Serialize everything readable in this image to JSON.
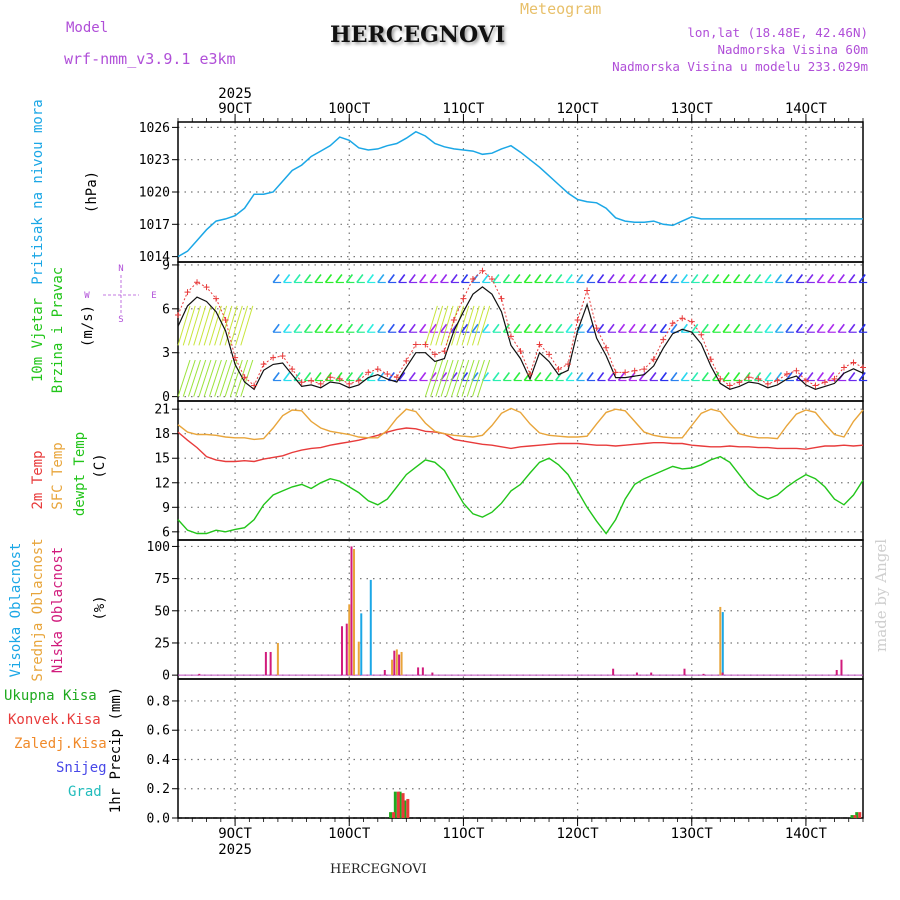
{
  "header": {
    "model_label": "Model",
    "model_name": "wrf-nmm_v3.9.1 e3km",
    "title": "HERCEGNOVI",
    "subtitle": "Meteogram",
    "lonlat": "lon,lat (18.48E, 42.46N)",
    "altitude": "Nadmorska Visina 60m",
    "model_altitude": "Nadmorska Visina u modelu 233.029m",
    "footer_title": "HERCEGNOVI",
    "watermark": "made by Angel"
  },
  "colors": {
    "pressure": "#1ba7e6",
    "temp2m": "#e83b3b",
    "sfc": "#e8a53b",
    "dewpt": "#22c51a",
    "cloud_high": "#1ba7e6",
    "cloud_mid": "#e8a53b",
    "cloud_low": "#d11b7c",
    "precip_total": "#1faa1f",
    "precip_conv": "#e83b3b",
    "precip_strat": "#f08a2a",
    "snow": "#4848e8",
    "graupel": "#22bcbc",
    "purple": "#b04fd8"
  },
  "chart_data": [
    {
      "type": "line",
      "title": "Pritisak na nivou mora",
      "ylabel": "(hPa)",
      "ylim": [
        1013.5,
        1026.5
      ],
      "yticks": [
        1014,
        1017,
        1020,
        1023,
        1026
      ],
      "x_unit": "hours since 8 OCT 12:00",
      "xlim": [
        0,
        144
      ],
      "series": [
        {
          "name": "pressure",
          "x": [
            0,
            2,
            4,
            6,
            8,
            10,
            12,
            14,
            16,
            18,
            20,
            22,
            24,
            26,
            28,
            30,
            32,
            34,
            36,
            38,
            40,
            42,
            44,
            46,
            48,
            50,
            52,
            54,
            56,
            58,
            60,
            62,
            64,
            66,
            68,
            70,
            72,
            74,
            76,
            78,
            80,
            82,
            84,
            86,
            88,
            90,
            92,
            94,
            96,
            98,
            100,
            102,
            104,
            106,
            108,
            110,
            112,
            114,
            116,
            118,
            120,
            122,
            124,
            126,
            128,
            130,
            132,
            134,
            136,
            138,
            140,
            142,
            144
          ],
          "values": [
            1014.0,
            1014.5,
            1015.5,
            1016.5,
            1017.3,
            1017.5,
            1017.8,
            1018.5,
            1019.8,
            1019.8,
            1020.0,
            1021.0,
            1022.0,
            1022.5,
            1023.3,
            1023.8,
            1024.3,
            1025.1,
            1024.8,
            1024.1,
            1023.9,
            1024.0,
            1024.3,
            1024.5,
            1025.0,
            1025.6,
            1025.2,
            1024.5,
            1024.2,
            1024.0,
            1023.9,
            1023.8,
            1023.5,
            1023.6,
            1024.0,
            1024.3,
            1023.7,
            1023.0,
            1022.3,
            1021.5,
            1020.7,
            1019.9,
            1019.3,
            1019.1,
            1019.0,
            1018.5,
            1017.6,
            1017.3,
            1017.2,
            1017.2,
            1017.3,
            1017.0,
            1016.9,
            1017.3,
            1017.7,
            1017.5,
            1017.5,
            1017.5,
            1017.5,
            1017.5,
            1017.5,
            1017.5,
            1017.5,
            1017.5,
            1017.5,
            1017.5,
            1017.5,
            1017.5,
            1017.5,
            1017.5,
            1017.5,
            1017.5,
            1017.5
          ]
        }
      ]
    },
    {
      "type": "line",
      "title": "10m Vjetar Brzina i Pravac",
      "ylabel": "(m/s)",
      "ylim": [
        -0.3,
        9.2
      ],
      "yticks": [
        0,
        3,
        6,
        9
      ],
      "compass": {
        "north": "N",
        "south": "S",
        "east": "E",
        "west": "W"
      },
      "series": [
        {
          "name": "wind_speed",
          "values": [
            4.8,
            6.2,
            6.8,
            6.5,
            5.8,
            4.5,
            2.2,
            1.0,
            0.5,
            1.8,
            2.2,
            2.3,
            1.5,
            0.7,
            0.8,
            0.6,
            1.0,
            0.9,
            0.6,
            0.8,
            1.3,
            1.5,
            1.2,
            1.0,
            2.0,
            3.0,
            3.0,
            2.4,
            2.6,
            4.5,
            5.8,
            7.0,
            7.5,
            7.0,
            5.8,
            3.5,
            2.6,
            1.2,
            3.0,
            2.4,
            1.5,
            1.8,
            4.5,
            6.3,
            4.0,
            2.8,
            1.3,
            1.3,
            1.4,
            1.5,
            2.1,
            3.3,
            4.3,
            4.6,
            4.4,
            3.6,
            2.1,
            0.9,
            0.5,
            0.7,
            1.0,
            0.9,
            0.6,
            0.8,
            1.2,
            1.4,
            0.8,
            0.5,
            0.7,
            0.9,
            1.6,
            1.9,
            1.6
          ]
        }
      ]
    },
    {
      "type": "line",
      "title": "2m Temp / SFC Temp / dewpt Temp",
      "ylabel": "(C)",
      "ylim": [
        5,
        22
      ],
      "yticks": [
        6,
        9,
        12,
        15,
        18,
        21
      ],
      "series": [
        {
          "name": "2m Temp",
          "values": [
            18.2,
            17.2,
            16.3,
            15.2,
            14.8,
            14.6,
            14.6,
            14.7,
            14.6,
            14.9,
            15.1,
            15.3,
            15.7,
            16.0,
            16.2,
            16.3,
            16.6,
            16.8,
            17.0,
            17.2,
            17.5,
            17.8,
            18.2,
            18.5,
            18.7,
            18.6,
            18.3,
            18.2,
            18.0,
            17.3,
            17.1,
            16.9,
            16.7,
            16.6,
            16.4,
            16.2,
            16.4,
            16.5,
            16.6,
            16.7,
            16.8,
            16.8,
            16.8,
            16.7,
            16.6,
            16.6,
            16.5,
            16.6,
            16.7,
            16.8,
            16.9,
            16.9,
            16.8,
            16.8,
            16.6,
            16.5,
            16.4,
            16.4,
            16.5,
            16.4,
            16.4,
            16.3,
            16.3,
            16.2,
            16.2,
            16.2,
            16.1,
            16.3,
            16.5,
            16.5,
            16.6,
            16.5,
            16.6
          ]
        },
        {
          "name": "SFC Temp",
          "values": [
            19.1,
            18.2,
            17.9,
            17.9,
            17.8,
            17.6,
            17.5,
            17.5,
            17.3,
            17.4,
            18.7,
            20.2,
            20.9,
            20.8,
            19.5,
            18.7,
            18.3,
            18.1,
            17.9,
            17.6,
            17.5,
            17.5,
            18.4,
            19.9,
            21.0,
            20.7,
            19.3,
            18.3,
            18.0,
            17.8,
            17.7,
            17.6,
            17.8,
            19.0,
            20.5,
            21.1,
            20.6,
            19.2,
            18.1,
            17.8,
            17.7,
            17.6,
            17.6,
            17.7,
            19.2,
            20.6,
            21.0,
            20.8,
            19.5,
            18.2,
            17.8,
            17.6,
            17.5,
            17.5,
            19.0,
            20.5,
            21.0,
            20.7,
            19.3,
            18.0,
            17.7,
            17.5,
            17.5,
            17.4,
            19.0,
            20.4,
            20.9,
            20.6,
            19.2,
            17.9,
            17.6,
            19.5,
            20.9
          ]
        },
        {
          "name": "dewpt Temp",
          "values": [
            7.5,
            6.2,
            5.8,
            5.8,
            6.2,
            6.0,
            6.3,
            6.5,
            7.5,
            9.3,
            10.5,
            11.0,
            11.5,
            11.8,
            11.3,
            12.0,
            12.5,
            12.2,
            11.5,
            10.8,
            9.8,
            9.3,
            10.0,
            11.5,
            13.0,
            13.9,
            14.8,
            14.5,
            13.5,
            11.5,
            9.5,
            8.2,
            7.8,
            8.4,
            9.5,
            11.0,
            11.8,
            13.2,
            14.5,
            15.0,
            14.2,
            13.0,
            11.0,
            9.0,
            7.3,
            5.8,
            7.5,
            10.0,
            11.8,
            12.5,
            13.0,
            13.5,
            14.0,
            13.7,
            13.8,
            14.2,
            14.8,
            15.2,
            14.5,
            13.0,
            11.5,
            10.5,
            10.0,
            10.5,
            11.5,
            12.3,
            13.0,
            12.5,
            11.5,
            10.0,
            9.3,
            10.5,
            12.3
          ]
        }
      ]
    },
    {
      "type": "bar",
      "title": "Visoka / Srednja / Niska Oblacnost",
      "ylabel": "(%)",
      "ylim": [
        -3,
        105
      ],
      "yticks": [
        0,
        25,
        50,
        75,
        100
      ],
      "series": [
        {
          "name": "Visoka Oblacnost",
          "x": [
            38,
            40,
            114
          ],
          "values": [
            48,
            74,
            49
          ]
        },
        {
          "name": "Srednja Oblacnost",
          "x": [
            21,
            36,
            37,
            38,
            45,
            46,
            47,
            114
          ],
          "values": [
            25,
            55,
            98,
            26,
            12,
            20,
            18,
            53
          ]
        },
        {
          "name": "Niska Oblacnost",
          "x": [
            5,
            19,
            20,
            35,
            36,
            37,
            44,
            46,
            47,
            51,
            52,
            54,
            92,
            97,
            100,
            107,
            111,
            115,
            139,
            140
          ],
          "values": [
            1,
            18,
            18,
            38,
            40,
            100,
            4,
            19,
            16,
            6,
            6,
            2,
            5,
            2,
            2,
            5,
            1,
            2,
            4,
            12
          ]
        }
      ]
    },
    {
      "type": "bar",
      "title": "1hr Precip",
      "ylabel": "1hr Precip (mm)",
      "ylim": [
        0,
        0.95
      ],
      "yticks": [
        0.0,
        0.2,
        0.4,
        0.6,
        0.8
      ],
      "legend": [
        "Ukupna Kisa",
        "Konvek.Kisa",
        "Zaledj.Kisa",
        "Snijeg",
        "Grad"
      ],
      "series": [
        {
          "name": "Ukupna Kisa",
          "x": [
            45,
            46,
            47,
            48,
            142,
            143
          ],
          "values": [
            0.04,
            0.18,
            0.18,
            0.12,
            0.02,
            0.04
          ]
        },
        {
          "name": "Konvek.Kisa",
          "x": [
            45,
            46,
            47,
            48,
            142,
            143
          ],
          "values": [
            0.04,
            0.18,
            0.17,
            0.13,
            0.02,
            0.04
          ]
        }
      ]
    }
  ],
  "xaxis": {
    "ticks": [
      {
        "hour": 12,
        "label": "9OCT"
      },
      {
        "hour": 36,
        "label": "10OCT"
      },
      {
        "hour": 60,
        "label": "11OCT"
      },
      {
        "hour": 84,
        "label": "12OCT"
      },
      {
        "hour": 108,
        "label": "13OCT"
      },
      {
        "hour": 132,
        "label": "14OCT"
      }
    ],
    "year": "2025"
  },
  "panel_labels": {
    "pressure": {
      "title": "Pritisak na nivou mora",
      "unit": "(hPa)"
    },
    "wind": {
      "title1": "10m Vjetar",
      "title2": "Brzina i Pravac",
      "unit": "(m/s)"
    },
    "temp": {
      "t1": "2m Temp",
      "t2": "SFC Temp",
      "t3": "dewpt Temp",
      "unit": "(C)"
    },
    "cloud": {
      "c1": "Visoka Oblacnost",
      "c2": "Srednja Oblacnost",
      "c3": "Niska Oblacnost",
      "unit": "(%)"
    },
    "precip": {
      "unit": "1hr Precip (mm)"
    }
  }
}
